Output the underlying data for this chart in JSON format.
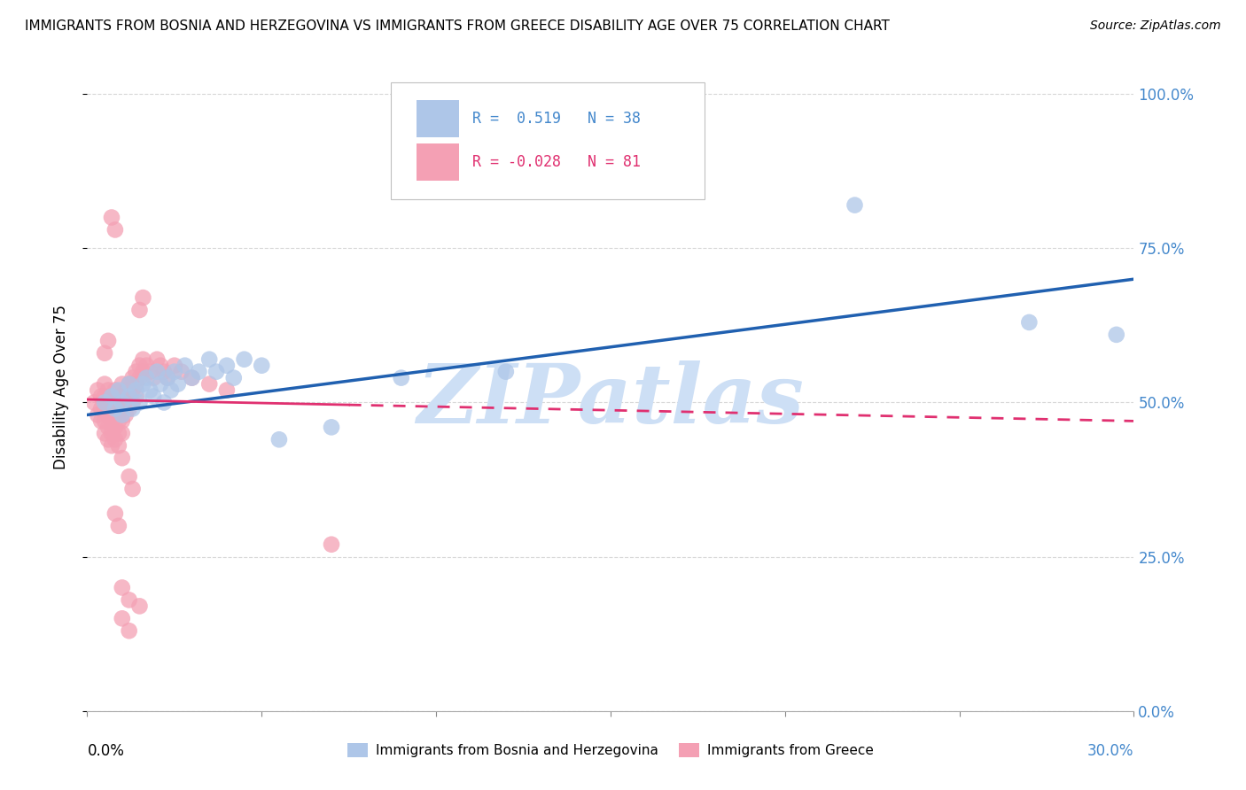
{
  "title": "IMMIGRANTS FROM BOSNIA AND HERZEGOVINA VS IMMIGRANTS FROM GREECE DISABILITY AGE OVER 75 CORRELATION CHART",
  "source": "Source: ZipAtlas.com",
  "ylabel": "Disability Age Over 75",
  "ytick_values": [
    0.0,
    0.25,
    0.5,
    0.75,
    1.0
  ],
  "xlim": [
    0.0,
    0.3
  ],
  "ylim": [
    0.0,
    1.05
  ],
  "R_bosnia": 0.519,
  "N_bosnia": 38,
  "R_greece": -0.028,
  "N_greece": 81,
  "bosnia_color": "#aec6e8",
  "greece_color": "#f4a0b4",
  "bosnia_line_color": "#2060b0",
  "greece_line_color": "#e03070",
  "watermark": "ZIPatlas",
  "watermark_color": "#cddff5",
  "bosnia_scatter": [
    [
      0.005,
      0.5
    ],
    [
      0.007,
      0.51
    ],
    [
      0.008,
      0.49
    ],
    [
      0.009,
      0.52
    ],
    [
      0.01,
      0.5
    ],
    [
      0.01,
      0.48
    ],
    [
      0.012,
      0.51
    ],
    [
      0.012,
      0.53
    ],
    [
      0.013,
      0.49
    ],
    [
      0.014,
      0.52
    ],
    [
      0.015,
      0.5
    ],
    [
      0.016,
      0.53
    ],
    [
      0.017,
      0.54
    ],
    [
      0.018,
      0.52
    ],
    [
      0.019,
      0.51
    ],
    [
      0.02,
      0.55
    ],
    [
      0.021,
      0.53
    ],
    [
      0.022,
      0.5
    ],
    [
      0.023,
      0.54
    ],
    [
      0.024,
      0.52
    ],
    [
      0.025,
      0.55
    ],
    [
      0.026,
      0.53
    ],
    [
      0.028,
      0.56
    ],
    [
      0.03,
      0.54
    ],
    [
      0.032,
      0.55
    ],
    [
      0.035,
      0.57
    ],
    [
      0.037,
      0.55
    ],
    [
      0.04,
      0.56
    ],
    [
      0.042,
      0.54
    ],
    [
      0.045,
      0.57
    ],
    [
      0.05,
      0.56
    ],
    [
      0.055,
      0.44
    ],
    [
      0.07,
      0.46
    ],
    [
      0.09,
      0.54
    ],
    [
      0.12,
      0.55
    ],
    [
      0.22,
      0.82
    ],
    [
      0.27,
      0.63
    ],
    [
      0.295,
      0.61
    ]
  ],
  "greece_scatter": [
    [
      0.002,
      0.5
    ],
    [
      0.003,
      0.52
    ],
    [
      0.003,
      0.48
    ],
    [
      0.004,
      0.51
    ],
    [
      0.004,
      0.49
    ],
    [
      0.004,
      0.47
    ],
    [
      0.005,
      0.53
    ],
    [
      0.005,
      0.51
    ],
    [
      0.005,
      0.49
    ],
    [
      0.005,
      0.47
    ],
    [
      0.005,
      0.45
    ],
    [
      0.006,
      0.52
    ],
    [
      0.006,
      0.5
    ],
    [
      0.006,
      0.48
    ],
    [
      0.006,
      0.46
    ],
    [
      0.006,
      0.44
    ],
    [
      0.007,
      0.51
    ],
    [
      0.007,
      0.49
    ],
    [
      0.007,
      0.47
    ],
    [
      0.007,
      0.45
    ],
    [
      0.007,
      0.43
    ],
    [
      0.008,
      0.52
    ],
    [
      0.008,
      0.5
    ],
    [
      0.008,
      0.48
    ],
    [
      0.008,
      0.46
    ],
    [
      0.008,
      0.44
    ],
    [
      0.009,
      0.51
    ],
    [
      0.009,
      0.49
    ],
    [
      0.009,
      0.47
    ],
    [
      0.009,
      0.45
    ],
    [
      0.01,
      0.53
    ],
    [
      0.01,
      0.51
    ],
    [
      0.01,
      0.49
    ],
    [
      0.01,
      0.47
    ],
    [
      0.01,
      0.45
    ],
    [
      0.011,
      0.52
    ],
    [
      0.011,
      0.5
    ],
    [
      0.011,
      0.48
    ],
    [
      0.012,
      0.53
    ],
    [
      0.012,
      0.51
    ],
    [
      0.012,
      0.49
    ],
    [
      0.013,
      0.54
    ],
    [
      0.013,
      0.52
    ],
    [
      0.013,
      0.5
    ],
    [
      0.014,
      0.55
    ],
    [
      0.014,
      0.53
    ],
    [
      0.014,
      0.51
    ],
    [
      0.015,
      0.56
    ],
    [
      0.015,
      0.54
    ],
    [
      0.016,
      0.57
    ],
    [
      0.016,
      0.55
    ],
    [
      0.017,
      0.56
    ],
    [
      0.018,
      0.55
    ],
    [
      0.019,
      0.54
    ],
    [
      0.02,
      0.57
    ],
    [
      0.021,
      0.56
    ],
    [
      0.022,
      0.55
    ],
    [
      0.023,
      0.54
    ],
    [
      0.025,
      0.56
    ],
    [
      0.027,
      0.55
    ],
    [
      0.03,
      0.54
    ],
    [
      0.035,
      0.53
    ],
    [
      0.04,
      0.52
    ],
    [
      0.007,
      0.8
    ],
    [
      0.008,
      0.78
    ],
    [
      0.015,
      0.65
    ],
    [
      0.016,
      0.67
    ],
    [
      0.005,
      0.58
    ],
    [
      0.006,
      0.6
    ],
    [
      0.009,
      0.43
    ],
    [
      0.01,
      0.41
    ],
    [
      0.012,
      0.38
    ],
    [
      0.013,
      0.36
    ],
    [
      0.008,
      0.32
    ],
    [
      0.009,
      0.3
    ],
    [
      0.01,
      0.2
    ],
    [
      0.012,
      0.18
    ],
    [
      0.015,
      0.17
    ],
    [
      0.01,
      0.15
    ],
    [
      0.07,
      0.27
    ],
    [
      0.012,
      0.13
    ]
  ]
}
